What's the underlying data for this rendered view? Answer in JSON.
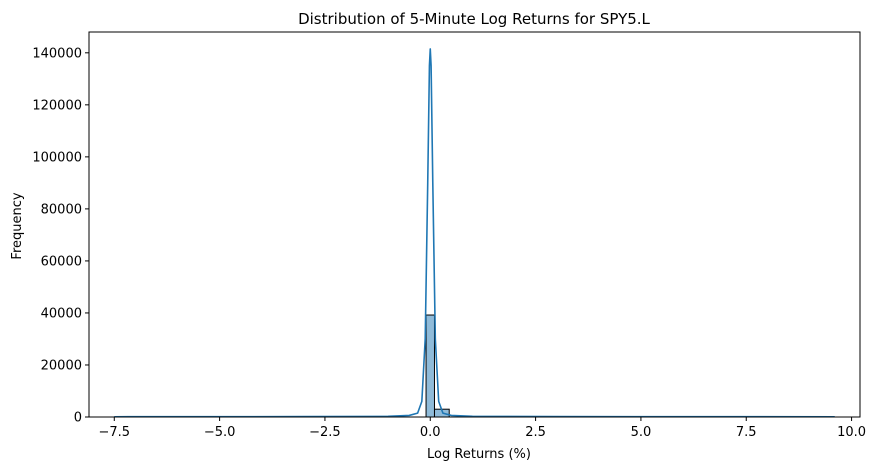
{
  "chart_data": {
    "type": "bar",
    "title": "Distribution of 5-Minute Log Returns for SPY5.L",
    "xlabel": "Log Returns (%)",
    "ylabel": "Frequency",
    "xlim": [
      -8.1,
      10.2
    ],
    "ylim": [
      0,
      148000
    ],
    "xticks": [
      -7.5,
      -5.0,
      -2.5,
      0.0,
      2.5,
      5.0,
      7.5,
      10.0
    ],
    "xtick_labels": [
      "−7.5",
      "−5.0",
      "−2.5",
      "0.0",
      "2.5",
      "5.0",
      "7.5",
      "10.0"
    ],
    "yticks": [
      0,
      20000,
      40000,
      60000,
      80000,
      100000,
      120000,
      140000
    ],
    "ytick_labels": [
      "0",
      "20000",
      "40000",
      "60000",
      "80000",
      "100000",
      "120000",
      "140000"
    ],
    "grid": false,
    "histogram_bins": [
      {
        "x0": -0.1,
        "x1": 0.1,
        "count": 39200
      },
      {
        "x0": 0.1,
        "x1": 0.45,
        "count": 3000
      }
    ],
    "kde_series": {
      "name": "",
      "x": [
        -7.5,
        -3.0,
        -1.0,
        -0.5,
        -0.3,
        -0.2,
        -0.12,
        -0.06,
        -0.02,
        0.0,
        0.02,
        0.06,
        0.12,
        0.2,
        0.3,
        0.5,
        1.0,
        3.0,
        9.6
      ],
      "y": [
        100,
        150,
        250,
        600,
        1500,
        6000,
        30000,
        90000,
        135000,
        141500,
        135000,
        90000,
        30000,
        6000,
        1500,
        600,
        250,
        150,
        100
      ]
    },
    "colors": {
      "bar_fill": "#8fbbd9",
      "bar_edge": "#000000",
      "kde_line": "#1f77b4",
      "axes": "#000000"
    }
  }
}
